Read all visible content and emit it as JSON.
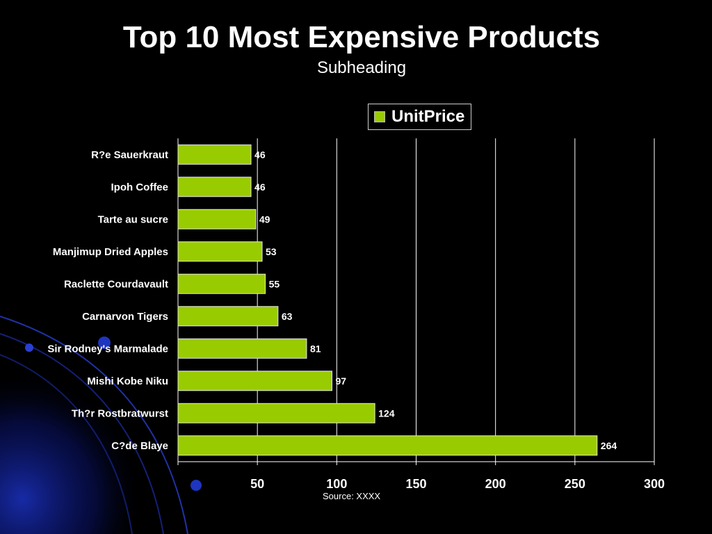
{
  "title": "Top 10 Most Expensive Products",
  "subtitle": "Subheading",
  "source": "Source:  XXXX",
  "colors": {
    "bar": "#99cc00",
    "background": "#000000",
    "text": "#ffffff",
    "grid": "#ffffff"
  },
  "chart_data": {
    "type": "bar",
    "orientation": "horizontal",
    "categories": [
      "R?e Sauerkraut",
      "Ipoh Coffee",
      "Tarte au sucre",
      "Manjimup Dried Apples",
      "Raclette Courdavault",
      "Carnarvon Tigers",
      "Sir Rodney's Marmalade",
      "Mishi Kobe Niku",
      "Th?r Rostbratwurst",
      "C?de Blaye"
    ],
    "series": [
      {
        "name": "UnitPrice",
        "values": [
          46,
          46,
          49,
          53,
          55,
          63,
          81,
          97,
          124,
          264
        ]
      }
    ],
    "data_labels": [
      "46",
      "46",
      "49",
      "53",
      "55",
      "63",
      "81",
      "97",
      "124",
      "264"
    ],
    "x_ticks": [
      "50",
      "100",
      "150",
      "200",
      "250",
      "300"
    ],
    "xlim": [
      0,
      300
    ],
    "grid": true,
    "legend": "top-right"
  }
}
